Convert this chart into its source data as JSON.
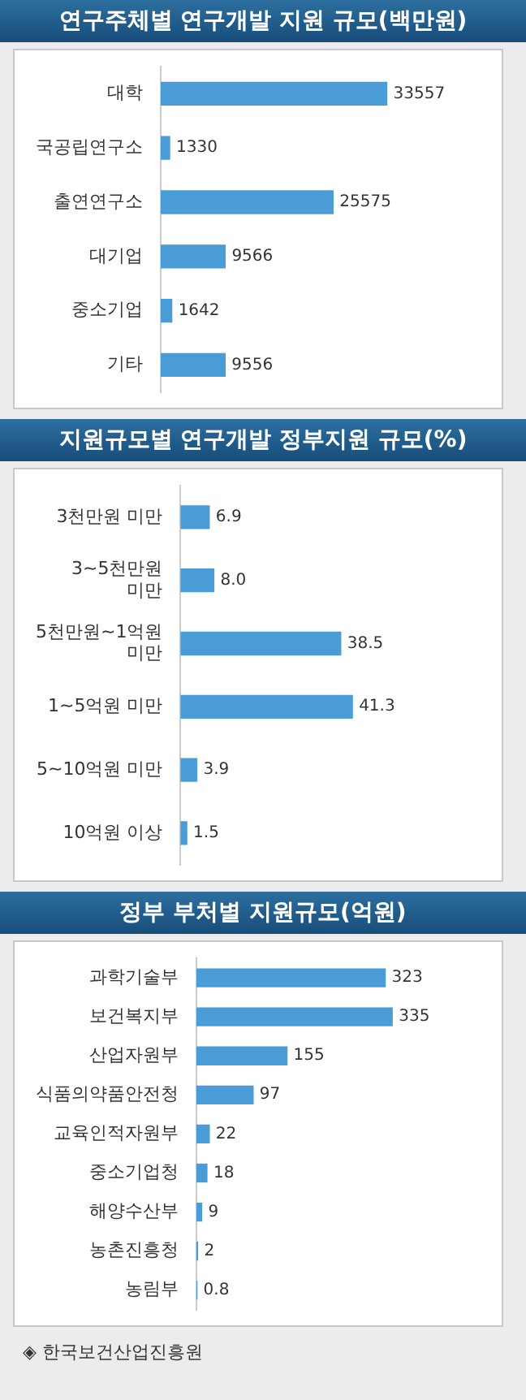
{
  "chart_data": [
    {
      "type": "bar",
      "orientation": "horizontal",
      "title": "연구주체별 연구개발 지원 규모(백만원)",
      "categories": [
        "대학",
        "국공립연구소",
        "출연연구소",
        "대기업",
        "중소기업",
        "기타"
      ],
      "values": [
        33557,
        1330,
        25575,
        9566,
        1642,
        9556
      ],
      "color": "#4a9cd6",
      "data_labels": true,
      "tick_labels": "y"
    },
    {
      "type": "bar",
      "orientation": "horizontal",
      "title": "지원규모별 연구개발 정부지원 규모(%)",
      "categories": [
        "3천만원 미만",
        "3~5천만원 미만",
        "5천만원~1억원 미만",
        "1~5억원 미만",
        "5~10억원 미만",
        "10억원 이상"
      ],
      "values": [
        6.9,
        8.0,
        38.5,
        41.3,
        3.9,
        1.5
      ],
      "value_labels": [
        "6.9",
        "8.0",
        "38.5",
        "41.3",
        "3.9",
        "1.5"
      ],
      "color": "#4a9cd6",
      "tick_labels": "y"
    },
    {
      "type": "bar",
      "orientation": "horizontal",
      "title": "정부 부처별 지원규모(억원)",
      "categories": [
        "과학기술부",
        "보건복지부",
        "산업자원부",
        "식품의약품안전청",
        "교육인적자원부",
        "중소기업청",
        "해양수산부",
        "농촌진흥청",
        "농림부"
      ],
      "values": [
        323,
        335,
        155,
        97,
        22,
        18,
        9,
        2,
        0.8
      ],
      "color": "#4a9cd6",
      "data_labels": true,
      "tick_labels": "y",
      "annotations": [
        "◈ 한국보건산업진흥원"
      ]
    }
  ]
}
